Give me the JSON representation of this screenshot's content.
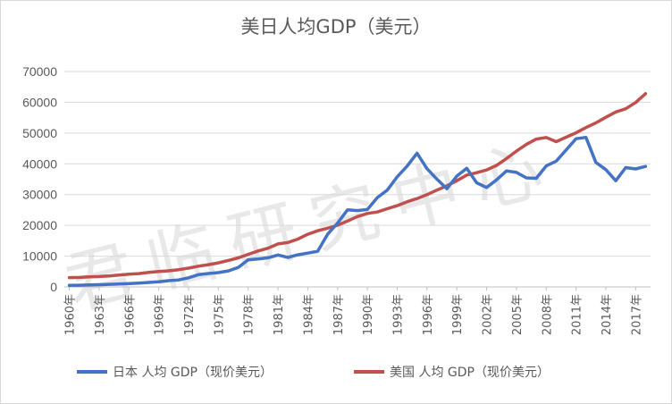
{
  "chart_data": {
    "type": "line",
    "title": "美日人均GDP（美元）",
    "xlabel": "",
    "ylabel": "",
    "ylim": [
      0,
      70000
    ],
    "yticks": [
      0,
      10000,
      20000,
      30000,
      40000,
      50000,
      60000,
      70000
    ],
    "grid": true,
    "legend_position": "bottom",
    "x": [
      1960,
      1961,
      1962,
      1963,
      1964,
      1965,
      1966,
      1967,
      1968,
      1969,
      1970,
      1971,
      1972,
      1973,
      1974,
      1975,
      1976,
      1977,
      1978,
      1979,
      1980,
      1981,
      1982,
      1983,
      1984,
      1985,
      1986,
      1987,
      1988,
      1989,
      1990,
      1991,
      1992,
      1993,
      1994,
      1995,
      1996,
      1997,
      1998,
      1999,
      2000,
      2001,
      2002,
      2003,
      2004,
      2005,
      2006,
      2007,
      2008,
      2009,
      2010,
      2011,
      2012,
      2013,
      2014,
      2015,
      2016,
      2017,
      2018
    ],
    "x_tick_labels": [
      "1960年",
      "1963年",
      "1966年",
      "1969年",
      "1972年",
      "1975年",
      "1978年",
      "1981年",
      "1984年",
      "1987年",
      "1990年",
      "1993年",
      "1996年",
      "1999年",
      "2002年",
      "2005年",
      "2008年",
      "2011年",
      "2014年",
      "2017年"
    ],
    "series": [
      {
        "name": "日本 人均 GDP（现价美元）",
        "color": "#4472c4",
        "values": [
          480,
          560,
          630,
          720,
          840,
          920,
          1070,
          1240,
          1450,
          1670,
          2040,
          2270,
          2970,
          3990,
          4350,
          4660,
          5200,
          6330,
          8820,
          9100,
          9460,
          10360,
          9580,
          10420,
          10980,
          11580,
          17110,
          20750,
          25050,
          24810,
          25140,
          29030,
          31460,
          35770,
          39270,
          43440,
          38440,
          35020,
          31900,
          36030,
          38530,
          33850,
          32290,
          34810,
          37690,
          37220,
          35430,
          35280,
          39340,
          40860,
          44510,
          48170,
          48600,
          40450,
          38110,
          34520,
          38790,
          38330,
          39160
        ]
      },
      {
        "name": "美国 人均 GDP（现价美元）",
        "color": "#c0504d",
        "values": [
          3010,
          3070,
          3240,
          3370,
          3570,
          3830,
          4150,
          4340,
          4700,
          5030,
          5230,
          5610,
          6090,
          6730,
          7240,
          7800,
          8590,
          9450,
          10560,
          11670,
          12570,
          13980,
          14430,
          15540,
          17120,
          18240,
          19070,
          20040,
          21420,
          22860,
          23890,
          24340,
          25420,
          26390,
          27690,
          28690,
          29970,
          31460,
          32850,
          34520,
          36330,
          37130,
          37990,
          39490,
          41720,
          44110,
          46300,
          48050,
          48570,
          47190,
          48650,
          50070,
          51780,
          53290,
          55120,
          56850,
          57900,
          59930,
          62790
        ]
      }
    ]
  },
  "watermark": "君临研究中心"
}
